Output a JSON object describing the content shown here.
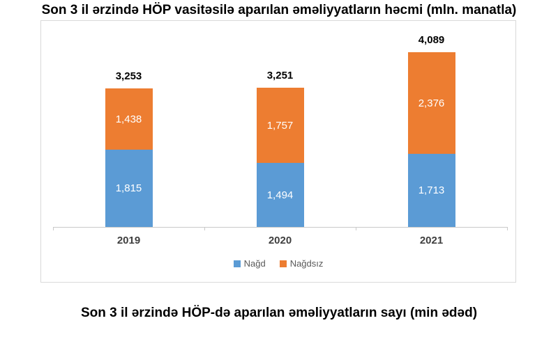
{
  "chart_title": "Son 3 il ərzində HÖP vasitəsilə aparılan əməliyyatların həcmi (mln. manatla)",
  "bottom_title": "Son 3 il ərzində HÖP-də aparılan əməliyyatların sayı (min ədəd)",
  "chart_data": {
    "type": "bar",
    "stacked": true,
    "title": "Son 3 il ərzində HÖP vasitəsilə aparılan əməliyyatların həcmi (mln. manatla)",
    "categories": [
      "2019",
      "2020",
      "2021"
    ],
    "series": [
      {
        "name": "Nağd",
        "color": "#5b9bd5",
        "values": [
          1815,
          1494,
          1713
        ],
        "labels": [
          "1,815",
          "1,494",
          "1,713"
        ]
      },
      {
        "name": "Nağdsız",
        "color": "#ed7d31",
        "values": [
          1438,
          1757,
          2376
        ],
        "labels": [
          "1,438",
          "1,757",
          "2,376"
        ]
      }
    ],
    "totals": [
      3253,
      3251,
      4089
    ],
    "total_labels": [
      "3,253",
      "3,251",
      "4,089"
    ],
    "ylim": [
      0,
      4300
    ],
    "xlabel": "",
    "ylabel": "",
    "grid": false,
    "legend_position": "bottom",
    "segment_label_color": "#ffffff",
    "total_label_color": "#000000",
    "axis_color": "#c9c9c9",
    "frame_border_color": "#d9d9d9"
  }
}
